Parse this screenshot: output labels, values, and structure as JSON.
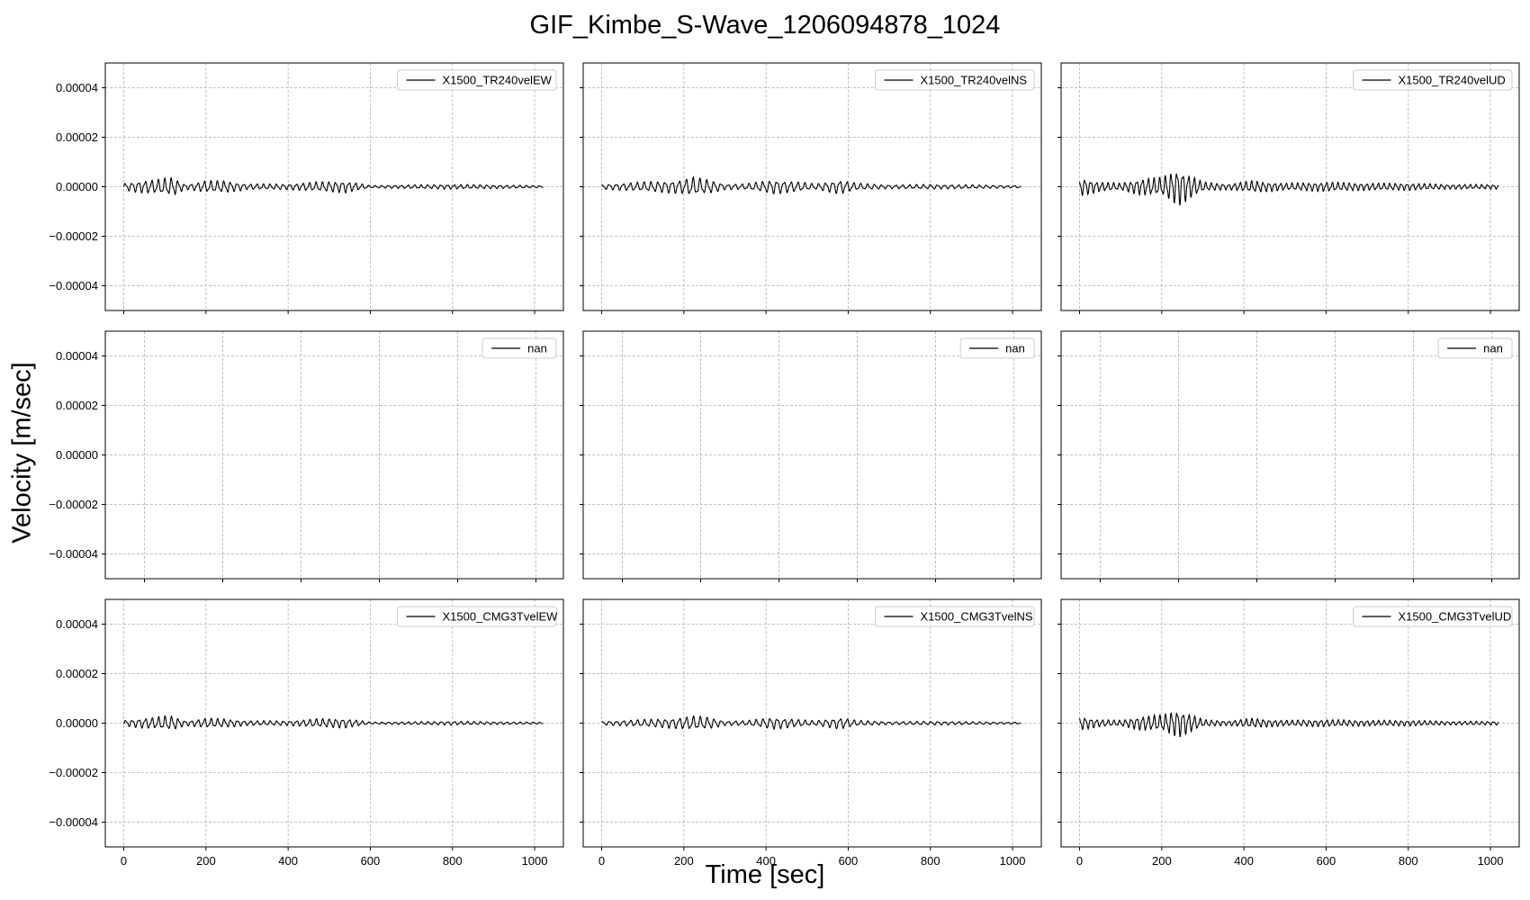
{
  "figure": {
    "title": "GIF_Kimbe_S-Wave_1206094878_1024",
    "xlabel": "Time [sec]",
    "ylabel": "Velocity [m/sec]"
  },
  "chart_data": [
    {
      "type": "line",
      "row": 0,
      "col": 0,
      "series": [
        {
          "name": "X1500_TR240velEW",
          "envelope": [
            [
              0,
              1.5e-06
            ],
            [
              40,
              2.5e-06
            ],
            [
              80,
              3e-06
            ],
            [
              100,
              3.5e-06
            ],
            [
              120,
              4e-06
            ],
            [
              150,
              1e-06
            ],
            [
              200,
              2.5e-06
            ],
            [
              250,
              2.5e-06
            ],
            [
              300,
              1.2e-06
            ],
            [
              400,
              1.2e-06
            ],
            [
              470,
              2e-06
            ],
            [
              540,
              2.5e-06
            ],
            [
              580,
              1.2e-06
            ],
            [
              600,
              5e-07
            ],
            [
              700,
              8e-07
            ],
            [
              800,
              1e-06
            ],
            [
              900,
              8e-07
            ],
            [
              1000,
              5e-07
            ],
            [
              1020,
              5e-07
            ]
          ],
          "period": 16
        }
      ],
      "x": [
        0,
        1020
      ],
      "xticks": [
        0,
        200,
        400,
        600,
        800,
        1000
      ],
      "yticks": [
        4e-05,
        2e-05,
        0.0,
        -2e-05,
        -4e-05
      ],
      "ytick_labels": [
        "0.00004",
        "0.00002",
        "0.00000",
        "−0.00002",
        "−0.00004"
      ],
      "xlim": [
        -45,
        1070
      ],
      "ylim": [
        -5e-05,
        5e-05
      ],
      "grid": true,
      "legend": "top-right"
    },
    {
      "type": "line",
      "row": 0,
      "col": 1,
      "series": [
        {
          "name": "X1500_TR240velNS",
          "envelope": [
            [
              0,
              1e-06
            ],
            [
              100,
              2e-06
            ],
            [
              160,
              2.5e-06
            ],
            [
              200,
              3e-06
            ],
            [
              220,
              4e-06
            ],
            [
              260,
              3e-06
            ],
            [
              300,
              1.2e-06
            ],
            [
              350,
              1.2e-06
            ],
            [
              420,
              3e-06
            ],
            [
              480,
              2e-06
            ],
            [
              520,
              1.2e-06
            ],
            [
              580,
              3e-06
            ],
            [
              620,
              1.5e-06
            ],
            [
              700,
              8e-07
            ],
            [
              800,
              1e-06
            ],
            [
              900,
              8e-07
            ],
            [
              1000,
              5e-07
            ],
            [
              1020,
              5e-07
            ]
          ],
          "period": 17
        }
      ],
      "x": [
        0,
        1020
      ],
      "xticks": [
        0,
        200,
        400,
        600,
        800,
        1000
      ],
      "yticks": [
        4e-05,
        2e-05,
        0.0,
        -2e-05,
        -4e-05
      ],
      "ytick_labels": [
        "0.00004",
        "0.00002",
        "0.00000",
        "−0.00002",
        "−0.00004"
      ],
      "xlim": [
        -45,
        1070
      ],
      "ylim": [
        -5e-05,
        5e-05
      ],
      "grid": true,
      "legend": "top-right"
    },
    {
      "type": "line",
      "row": 0,
      "col": 2,
      "series": [
        {
          "name": "X1500_TR240velUD",
          "envelope": [
            [
              0,
              4e-06
            ],
            [
              50,
              2e-06
            ],
            [
              100,
              1.5e-06
            ],
            [
              150,
              3.5e-06
            ],
            [
              200,
              4e-06
            ],
            [
              240,
              8e-06
            ],
            [
              270,
              5e-06
            ],
            [
              300,
              2e-06
            ],
            [
              360,
              1.2e-06
            ],
            [
              420,
              2.5e-06
            ],
            [
              500,
              1.5e-06
            ],
            [
              600,
              2e-06
            ],
            [
              700,
              1.5e-06
            ],
            [
              800,
              1.5e-06
            ],
            [
              900,
              1e-06
            ],
            [
              1000,
              1e-06
            ],
            [
              1020,
              1e-06
            ]
          ],
          "period": 14
        }
      ],
      "x": [
        0,
        1020
      ],
      "xticks": [
        0,
        200,
        400,
        600,
        800,
        1000
      ],
      "yticks": [
        4e-05,
        2e-05,
        0.0,
        -2e-05,
        -4e-05
      ],
      "ytick_labels": [
        "0.00004",
        "0.00002",
        "0.00000",
        "−0.00002",
        "−0.00004"
      ],
      "xlim": [
        -45,
        1070
      ],
      "ylim": [
        -5e-05,
        5e-05
      ],
      "grid": true,
      "legend": "top-right"
    },
    {
      "type": "line",
      "row": 1,
      "col": 0,
      "series": [
        {
          "name": "nan",
          "envelope": [],
          "period": 16
        }
      ],
      "x": [
        0,
        1020
      ],
      "xticks": [
        0,
        200,
        400,
        600,
        800,
        1000
      ],
      "yticks": [
        4e-05,
        2e-05,
        0.0,
        -2e-05,
        -4e-05
      ],
      "ytick_labels": [
        "0.00004",
        "0.00002",
        "0.00000",
        "−0.00002",
        "−0.00004"
      ],
      "xlim": [
        -100,
        1070
      ],
      "ylim": [
        -5e-05,
        5e-05
      ],
      "grid": true,
      "legend": "top-right"
    },
    {
      "type": "line",
      "row": 1,
      "col": 1,
      "series": [
        {
          "name": "nan",
          "envelope": [],
          "period": 16
        }
      ],
      "x": [
        0,
        1020
      ],
      "xticks": [
        0,
        200,
        400,
        600,
        800,
        1000
      ],
      "yticks": [
        4e-05,
        2e-05,
        0.0,
        -2e-05,
        -4e-05
      ],
      "ytick_labels": [
        "0.00004",
        "0.00002",
        "0.00000",
        "−0.00002",
        "−0.00004"
      ],
      "xlim": [
        -100,
        1070
      ],
      "ylim": [
        -5e-05,
        5e-05
      ],
      "grid": true,
      "legend": "top-right"
    },
    {
      "type": "line",
      "row": 1,
      "col": 2,
      "series": [
        {
          "name": "nan",
          "envelope": [],
          "period": 16
        }
      ],
      "x": [
        0,
        1020
      ],
      "xticks": [
        0,
        200,
        400,
        600,
        800,
        1000
      ],
      "yticks": [
        4e-05,
        2e-05,
        0.0,
        -2e-05,
        -4e-05
      ],
      "ytick_labels": [
        "0.00004",
        "0.00002",
        "0.00000",
        "−0.00002",
        "−0.00004"
      ],
      "xlim": [
        -100,
        1070
      ],
      "ylim": [
        -5e-05,
        5e-05
      ],
      "grid": true,
      "legend": "top-right"
    },
    {
      "type": "line",
      "row": 2,
      "col": 0,
      "series": [
        {
          "name": "X1500_CMG3TvelEW",
          "envelope": [
            [
              0,
              1.2e-06
            ],
            [
              40,
              2e-06
            ],
            [
              80,
              2.5e-06
            ],
            [
              100,
              3e-06
            ],
            [
              120,
              3e-06
            ],
            [
              150,
              1e-06
            ],
            [
              200,
              2e-06
            ],
            [
              250,
              1.8e-06
            ],
            [
              300,
              1e-06
            ],
            [
              400,
              1e-06
            ],
            [
              470,
              1.8e-06
            ],
            [
              540,
              2e-06
            ],
            [
              580,
              1e-06
            ],
            [
              600,
              4e-07
            ],
            [
              700,
              6e-07
            ],
            [
              800,
              8e-07
            ],
            [
              900,
              6e-07
            ],
            [
              1000,
              4e-07
            ],
            [
              1020,
              4e-07
            ]
          ],
          "period": 16
        }
      ],
      "x": [
        0,
        1020
      ],
      "xticks": [
        0,
        200,
        400,
        600,
        800,
        1000
      ],
      "yticks": [
        4e-05,
        2e-05,
        0.0,
        -2e-05,
        -4e-05
      ],
      "ytick_labels": [
        "0.00004",
        "0.00002",
        "0.00000",
        "−0.00002",
        "−0.00004"
      ],
      "xlim": [
        -45,
        1070
      ],
      "ylim": [
        -5e-05,
        5e-05
      ],
      "grid": true,
      "legend": "top-right"
    },
    {
      "type": "line",
      "row": 2,
      "col": 1,
      "series": [
        {
          "name": "X1500_CMG3TvelNS",
          "envelope": [
            [
              0,
              8e-07
            ],
            [
              100,
              1.5e-06
            ],
            [
              160,
              2e-06
            ],
            [
              200,
              2.5e-06
            ],
            [
              220,
              3e-06
            ],
            [
              260,
              2.5e-06
            ],
            [
              300,
              1e-06
            ],
            [
              350,
              1e-06
            ],
            [
              420,
              2.5e-06
            ],
            [
              480,
              1.5e-06
            ],
            [
              520,
              1e-06
            ],
            [
              580,
              2.5e-06
            ],
            [
              620,
              1.2e-06
            ],
            [
              700,
              6e-07
            ],
            [
              800,
              8e-07
            ],
            [
              900,
              6e-07
            ],
            [
              1000,
              4e-07
            ],
            [
              1020,
              4e-07
            ]
          ],
          "period": 17
        }
      ],
      "x": [
        0,
        1020
      ],
      "xticks": [
        0,
        200,
        400,
        600,
        800,
        1000
      ],
      "yticks": [
        4e-05,
        2e-05,
        0.0,
        -2e-05,
        -4e-05
      ],
      "ytick_labels": [
        "0.00004",
        "0.00002",
        "0.00000",
        "−0.00002",
        "−0.00004"
      ],
      "xlim": [
        -45,
        1070
      ],
      "ylim": [
        -5e-05,
        5e-05
      ],
      "grid": true,
      "legend": "top-right"
    },
    {
      "type": "line",
      "row": 2,
      "col": 2,
      "series": [
        {
          "name": "X1500_CMG3TvelUD",
          "envelope": [
            [
              0,
              3e-06
            ],
            [
              50,
              1.5e-06
            ],
            [
              100,
              1.2e-06
            ],
            [
              150,
              3e-06
            ],
            [
              200,
              3.5e-06
            ],
            [
              240,
              6e-06
            ],
            [
              270,
              4e-06
            ],
            [
              300,
              1.5e-06
            ],
            [
              360,
              1e-06
            ],
            [
              420,
              2e-06
            ],
            [
              500,
              1.2e-06
            ],
            [
              600,
              1.5e-06
            ],
            [
              700,
              1.2e-06
            ],
            [
              800,
              1.2e-06
            ],
            [
              900,
              8e-07
            ],
            [
              1000,
              8e-07
            ],
            [
              1020,
              8e-07
            ]
          ],
          "period": 14
        }
      ],
      "x": [
        0,
        1020
      ],
      "xticks": [
        0,
        200,
        400,
        600,
        800,
        1000
      ],
      "yticks": [
        4e-05,
        2e-05,
        0.0,
        -2e-05,
        -4e-05
      ],
      "ytick_labels": [
        "0.00004",
        "0.00002",
        "0.00000",
        "−0.00002",
        "−0.00004"
      ],
      "xlim": [
        -45,
        1070
      ],
      "ylim": [
        -5e-05,
        5e-05
      ],
      "grid": true,
      "legend": "top-right"
    }
  ]
}
